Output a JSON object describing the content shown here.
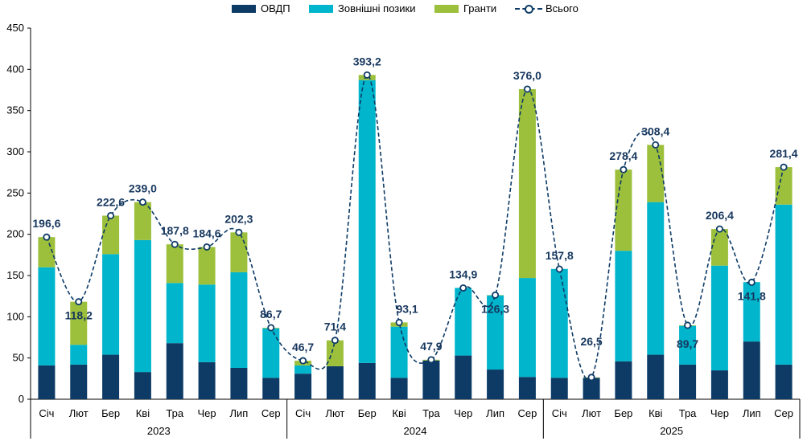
{
  "colors": {
    "ovdp": "#0d3b66",
    "external": "#00b5cc",
    "grants": "#9dc03c",
    "total": "#0d3b66",
    "label": "#17375e"
  },
  "legend": {
    "ovdp": "ОВДП",
    "external": "Зовнішні позики",
    "grants": "Гранти",
    "total": "Всього"
  },
  "chart_data": {
    "type": "bar",
    "stacked": true,
    "ylim": [
      0,
      450
    ],
    "yticks": [
      "0",
      "50",
      "100",
      "150",
      "200",
      "250",
      "300",
      "350",
      "400",
      "450"
    ],
    "grid": false,
    "legend_position": "top",
    "categories": [
      "Січ",
      "Лют",
      "Бер",
      "Кві",
      "Тра",
      "Чер",
      "Лип",
      "Сер",
      "Січ",
      "Лют",
      "Бер",
      "Кві",
      "Тра",
      "Чер",
      "Лип",
      "Сер",
      "Січ",
      "Лют",
      "Бер",
      "Кві",
      "Тра",
      "Чер",
      "Лип",
      "Сер"
    ],
    "years": [
      "2023",
      "2024",
      "2025"
    ],
    "series": [
      {
        "name": "ОВДП",
        "values": [
          41,
          42,
          54,
          33,
          68,
          45,
          38,
          26,
          31,
          40,
          44,
          26,
          47,
          53,
          36,
          27,
          26,
          26,
          46,
          54,
          42,
          35,
          70,
          42
        ]
      },
      {
        "name": "Зовнішні позики",
        "values": [
          119,
          24,
          122,
          160,
          73,
          94,
          116,
          60,
          10,
          0,
          343,
          62,
          0,
          82,
          90,
          120,
          132,
          0,
          134,
          185,
          47,
          127,
          72,
          194
        ]
      },
      {
        "name": "Гранти",
        "values": [
          36.6,
          52.2,
          46.6,
          46.0,
          46.8,
          45.6,
          48.3,
          0.7,
          5.7,
          31.4,
          6.2,
          5.1,
          0.9,
          0,
          0.3,
          229.0,
          0,
          0.5,
          98.4,
          69.4,
          0.7,
          44.4,
          0,
          45.4
        ]
      }
    ],
    "total": {
      "name": "Всього",
      "values": [
        196.6,
        118.2,
        222.6,
        239.0,
        187.8,
        184.6,
        202.3,
        86.7,
        46.7,
        71.4,
        393.2,
        93.1,
        47.9,
        134.9,
        126.3,
        376.0,
        157.8,
        26.5,
        278.4,
        308.4,
        89.7,
        206.4,
        141.8,
        281.4
      ],
      "labels": [
        "196,6",
        "118,2",
        "222,6",
        "239,0",
        "187,8",
        "184,6",
        "202,3",
        "86,7",
        "46,7",
        "71,4",
        "393,2",
        "93,1",
        "47,9",
        "134,9",
        "126,3",
        "376,0",
        "157,8",
        "26,5",
        "278,4",
        "308,4",
        "89,7",
        "206,4",
        "141,8",
        "281,4"
      ]
    }
  }
}
